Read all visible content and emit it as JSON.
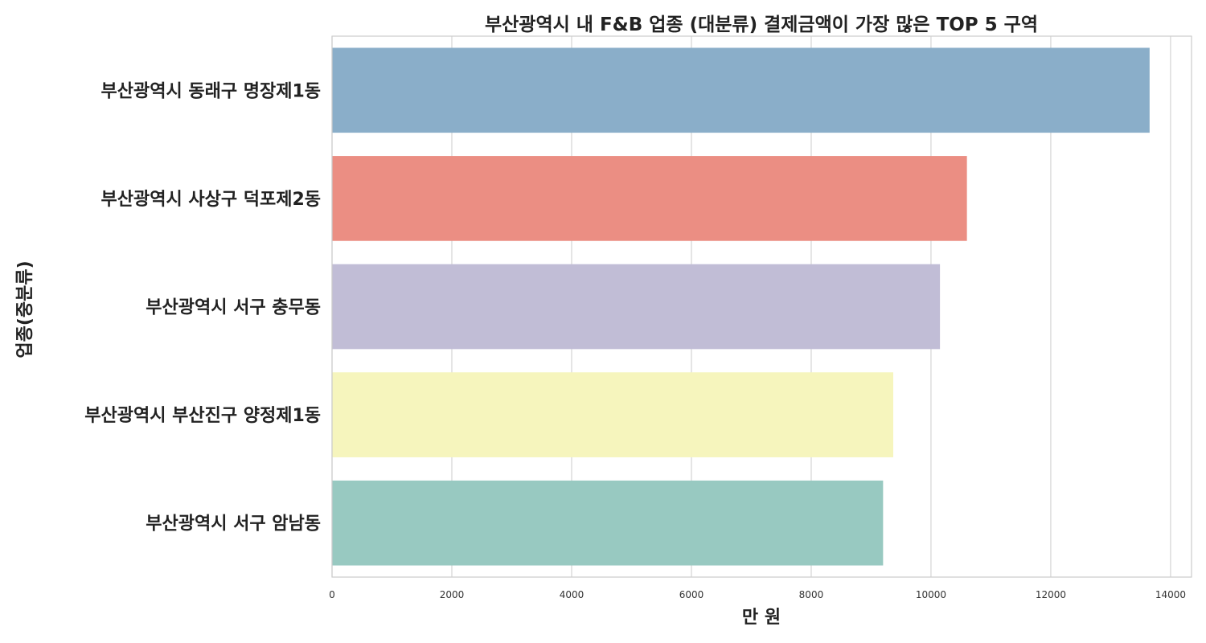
{
  "chart_data": {
    "type": "bar",
    "orientation": "horizontal",
    "title": "부산광역시 내 F&B 업종 (대분류) 결제금액이 가장 많은 TOP 5 구역",
    "xlabel": "만 원",
    "ylabel": "업종(중분류)",
    "categories": [
      "부산광역시 동래구 명장제1동",
      "부산광역시 사상구 덕포제2동",
      "부산광역시 서구 충무동",
      "부산광역시 부산진구 양정제1동",
      "부산광역시 서구 암남동"
    ],
    "values": [
      13650,
      10600,
      10150,
      9370,
      9200
    ],
    "colors": [
      "#8aaec9",
      "#eb8e83",
      "#c1bdd6",
      "#f6f5bd",
      "#98c9c1"
    ],
    "xlim": [
      0,
      14350
    ],
    "xticks": [
      "0",
      "2000",
      "4000",
      "6000",
      "8000",
      "10000",
      "12000",
      "14000"
    ],
    "grid": true,
    "legend": "none"
  }
}
